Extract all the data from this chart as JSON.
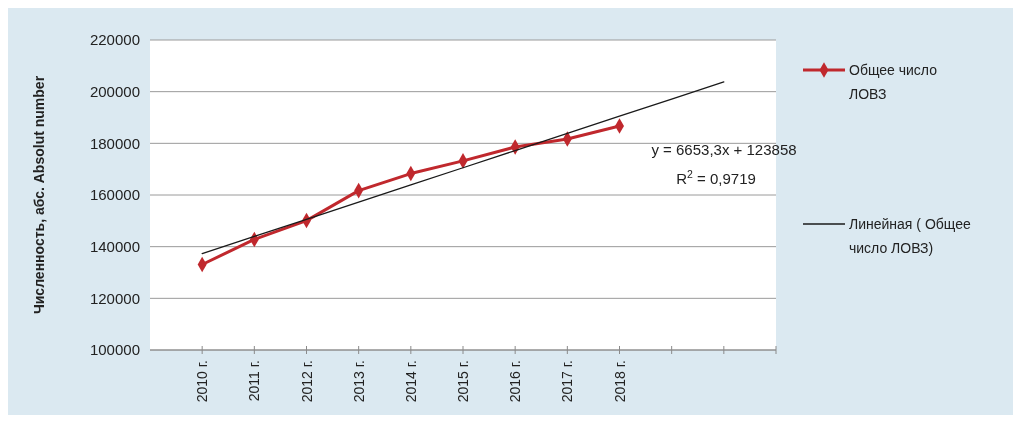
{
  "chart_data": {
    "type": "line",
    "ylabel": "Численность, абс. Absolut number",
    "categories": [
      "2010 г.",
      "2011 г.",
      "2012 г.",
      "2013 г.",
      "2014 г.",
      "2015 г.",
      "2016 г.",
      "2017 г.",
      "2018 г.",
      null,
      null
    ],
    "series": [
      {
        "name": "Общее число ЛОВЗ",
        "color": "#c0282d",
        "marker": "diamond",
        "values": [
          133100,
          142800,
          150100,
          161700,
          168300,
          173200,
          178600,
          181700,
          186700,
          null,
          null
        ]
      },
      {
        "name": "Линейная ( Общее число  ЛОВЗ)",
        "color": "#1a1a1a",
        "marker": "none",
        "values": [
          137300,
          143950,
          150600,
          157250,
          163900,
          170550,
          177200,
          183850,
          190500,
          197150,
          203800
        ]
      }
    ],
    "annotations": [
      "y = 6653,3x + 123858",
      "R$^{2}$ = 0,9719"
    ],
    "ylim": [
      100000,
      220000
    ],
    "yticks": [
      100000,
      120000,
      140000,
      160000,
      180000,
      200000,
      220000
    ],
    "grid": "y",
    "legend": "right"
  }
}
